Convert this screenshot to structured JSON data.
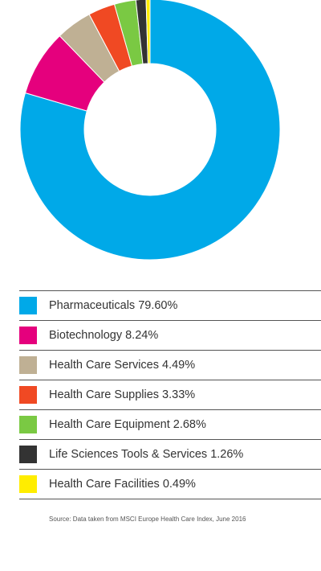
{
  "chart_data": {
    "type": "pie",
    "style": "donut",
    "title": "",
    "categories": [
      "Pharmaceuticals",
      "Biotechnology",
      "Health Care Services",
      "Health Care Supplies",
      "Health Care Equipment",
      "Life Sciences Tools & Services",
      "Health Care Facilities"
    ],
    "values": [
      79.6,
      8.24,
      4.49,
      3.33,
      2.68,
      1.26,
      0.49
    ],
    "labels": [
      "Pharmaceuticals 79.60%",
      "Biotechnology 8.24%",
      "Health Care Services 4.49%",
      "Health Care Supplies 3.33%",
      "Health Care Equipment 2.68%",
      "Life Sciences Tools & Services 1.26%",
      "Health Care Facilities 0.49%"
    ],
    "colors": [
      "#00a9e8",
      "#e5007d",
      "#bfb094",
      "#f04923",
      "#7ac943",
      "#333333",
      "#ffed00"
    ],
    "legend": "bottom",
    "source": "Source: Data taken from MSCI Europe Health Care Index, June 2016"
  }
}
